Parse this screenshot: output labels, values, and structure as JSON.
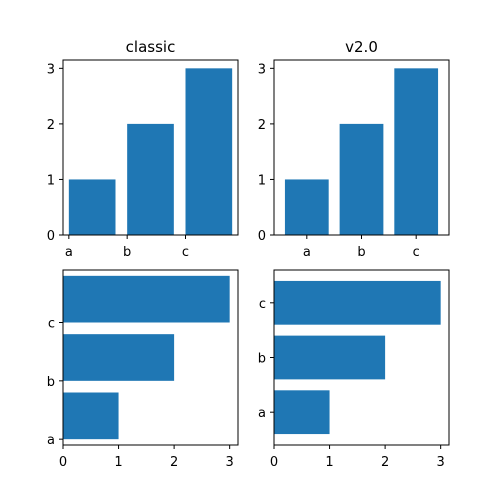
{
  "chart_data": [
    {
      "type": "bar",
      "title": "classic",
      "orientation": "vertical",
      "categories": [
        "a",
        "b",
        "c"
      ],
      "values": [
        1,
        2,
        3
      ],
      "ylim": [
        0,
        3.15
      ],
      "yticks": [
        0,
        1,
        2,
        3
      ],
      "category_positions": [
        0,
        1,
        2
      ],
      "xlim": [
        -0.1,
        2.9
      ],
      "bar_align": "edge",
      "bar_width": 0.8,
      "color": "#1f77b4"
    },
    {
      "type": "bar",
      "title": "v2.0",
      "orientation": "vertical",
      "categories": [
        "a",
        "b",
        "c"
      ],
      "values": [
        1,
        2,
        3
      ],
      "ylim": [
        0,
        3.15
      ],
      "yticks": [
        0,
        1,
        2,
        3
      ],
      "category_positions": [
        0,
        1,
        2
      ],
      "xlim": [
        -0.6,
        2.6
      ],
      "bar_align": "center",
      "bar_width": 0.8,
      "color": "#1f77b4"
    },
    {
      "type": "bar",
      "title": "",
      "orientation": "horizontal",
      "categories": [
        "a",
        "b",
        "c"
      ],
      "values": [
        1,
        2,
        3
      ],
      "xlim": [
        0,
        3.15
      ],
      "xticks": [
        0,
        1,
        2,
        3
      ],
      "category_positions": [
        0,
        1,
        2
      ],
      "ylim": [
        -0.1,
        2.9
      ],
      "bar_align": "edge",
      "bar_width": 0.8,
      "color": "#1f77b4"
    },
    {
      "type": "bar",
      "title": "",
      "orientation": "horizontal",
      "categories": [
        "a",
        "b",
        "c"
      ],
      "values": [
        1,
        2,
        3
      ],
      "xlim": [
        0,
        3.15
      ],
      "xticks": [
        0,
        1,
        2,
        3
      ],
      "category_positions": [
        0,
        1,
        2
      ],
      "ylim": [
        -0.6,
        2.6
      ],
      "bar_align": "center",
      "bar_width": 0.8,
      "color": "#1f77b4"
    }
  ]
}
